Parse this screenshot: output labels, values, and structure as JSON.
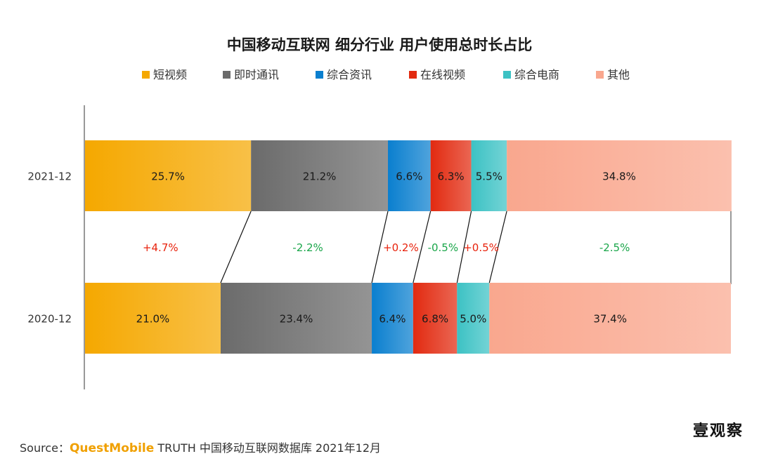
{
  "chart_data": {
    "type": "bar",
    "orientation": "horizontal",
    "stacked": "percent",
    "title": "中国移动互联网 细分行业 用户使用总时长占比",
    "legend_position": "top",
    "categories": [
      "2021-12",
      "2020-12"
    ],
    "series": [
      {
        "name": "短视频",
        "color": "#f5a800",
        "values": [
          25.7,
          21.0
        ],
        "labels": [
          "25.7%",
          "21.0%"
        ],
        "delta": "+4.7%",
        "delta_color": "#e8220c"
      },
      {
        "name": "即时通讯",
        "color": "#6b6b6b",
        "values": [
          21.2,
          23.4
        ],
        "labels": [
          "21.2%",
          "23.4%"
        ],
        "delta": "-2.2%",
        "delta_color": "#1aa64a"
      },
      {
        "name": "综合资讯",
        "color": "#0a7fcf",
        "values": [
          6.6,
          6.4
        ],
        "labels": [
          "6.6%",
          "6.4%"
        ],
        "delta": "+0.2%",
        "delta_color": "#e8220c"
      },
      {
        "name": "在线视频",
        "color": "#e22a10",
        "values": [
          6.3,
          6.8
        ],
        "labels": [
          "6.3%",
          "6.8%"
        ],
        "delta": "-0.5%",
        "delta_color": "#1aa64a"
      },
      {
        "name": "综合电商",
        "color": "#3cc2c4",
        "values": [
          5.5,
          5.0
        ],
        "labels": [
          "5.5%",
          "5.0%"
        ],
        "delta": "+0.5%",
        "delta_color": "#e8220c"
      },
      {
        "name": "其他",
        "color": "#f9a78e",
        "values": [
          34.8,
          37.4
        ],
        "labels": [
          "34.8%",
          "37.4%"
        ],
        "delta": "-2.5%",
        "delta_color": "#1aa64a"
      }
    ],
    "xlim": [
      0,
      100
    ]
  },
  "source": {
    "prefix": "Source：",
    "brand": "QuestMobile",
    "text": " TRUTH 中国移动互联网数据库 2021年12月"
  },
  "watermark": {
    "text": "壹观察"
  }
}
